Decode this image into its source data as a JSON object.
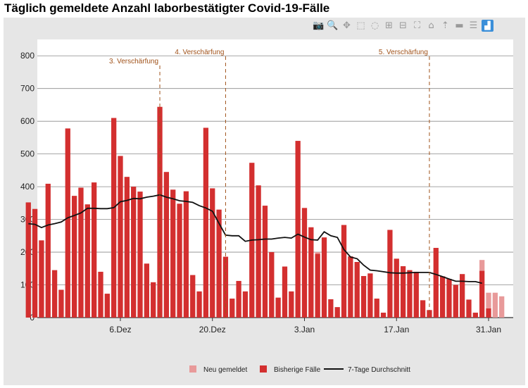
{
  "title": "Täglich gemeldete Anzahl laborbestätigter Covid-19-Fälle",
  "toolbar": [
    {
      "name": "camera-icon",
      "glyph": "📷"
    },
    {
      "name": "zoom-icon",
      "glyph": "🔍"
    },
    {
      "name": "pan-icon",
      "glyph": "✥"
    },
    {
      "name": "box-select-icon",
      "glyph": "⬚"
    },
    {
      "name": "lasso-select-icon",
      "glyph": "◌"
    },
    {
      "name": "zoom-in-icon",
      "glyph": "⊞"
    },
    {
      "name": "zoom-out-icon",
      "glyph": "⊟"
    },
    {
      "name": "autoscale-icon",
      "glyph": "⛶"
    },
    {
      "name": "home-icon",
      "glyph": "⌂"
    },
    {
      "name": "spike-lines-icon",
      "glyph": "⇡"
    },
    {
      "name": "hover-closest-icon",
      "glyph": "▬"
    },
    {
      "name": "hover-compare-icon",
      "glyph": "☰"
    },
    {
      "name": "plotly-logo-icon",
      "glyph": "▟"
    }
  ],
  "colors": {
    "bars": "#d32f2f",
    "new_bars": "#e89a9a",
    "line": "#111111",
    "annotation": "#a0521a",
    "grid": "#8a8a8a"
  },
  "chart_data": {
    "type": "bar",
    "title": "Täglich gemeldete Anzahl laborbestätigter Covid-19-Fälle",
    "ylim": [
      0,
      850
    ],
    "yticks": [
      0,
      100,
      200,
      300,
      400,
      500,
      600,
      700,
      800
    ],
    "x_start": "2020-11-22",
    "xticks": [
      {
        "date": "2020-12-06",
        "label": "6.Dez"
      },
      {
        "date": "2020-12-20",
        "label": "20.Dez"
      },
      {
        "date": "2021-01-03",
        "label": "3.Jan"
      },
      {
        "date": "2021-01-17",
        "label": "17.Jan"
      },
      {
        "date": "2021-01-31",
        "label": "31.Jan"
      }
    ],
    "series": [
      {
        "name": "Neu gemeldet",
        "type": "bar",
        "color": "#e89a9a"
      },
      {
        "name": "Bisherige Fälle",
        "type": "bar",
        "color": "#d32f2f"
      },
      {
        "name": "7-Tage Durchschnitt",
        "type": "line",
        "color": "#111111"
      }
    ],
    "bisherige": [
      352,
      332,
      236,
      409,
      145,
      85,
      578,
      372,
      397,
      346,
      413,
      140,
      73,
      610,
      494,
      430,
      400,
      385,
      165,
      108,
      644,
      445,
      391,
      348,
      386,
      130,
      80,
      580,
      395,
      330,
      186,
      58,
      112,
      80,
      473,
      404,
      342,
      200,
      61,
      156,
      80,
      540,
      335,
      276,
      195,
      245,
      56,
      32,
      283,
      187,
      170,
      127,
      135,
      58,
      15,
      268,
      180,
      157,
      145,
      140,
      53,
      23,
      213,
      126,
      118,
      100,
      133,
      55,
      15,
      143,
      28,
      0,
      0
    ],
    "neu": [
      0,
      0,
      0,
      0,
      0,
      0,
      0,
      0,
      0,
      0,
      0,
      0,
      0,
      0,
      0,
      0,
      0,
      0,
      0,
      0,
      0,
      0,
      0,
      0,
      0,
      0,
      0,
      0,
      0,
      0,
      0,
      0,
      0,
      0,
      0,
      0,
      0,
      0,
      0,
      0,
      0,
      0,
      0,
      0,
      5,
      0,
      0,
      0,
      0,
      0,
      0,
      0,
      0,
      0,
      0,
      0,
      0,
      0,
      0,
      0,
      0,
      0,
      0,
      0,
      0,
      0,
      0,
      0,
      0,
      33,
      48,
      76,
      65
    ],
    "avg7": [
      287,
      285,
      275,
      283,
      287,
      292,
      305,
      312,
      320,
      334,
      334,
      333,
      333,
      336,
      354,
      358,
      364,
      363,
      368,
      371,
      375,
      368,
      363,
      357,
      355,
      352,
      342,
      335,
      325,
      288,
      252,
      250,
      250,
      233,
      237,
      238,
      240,
      240,
      243,
      245,
      243,
      255,
      246,
      238,
      237,
      262,
      250,
      245,
      208,
      185,
      180,
      160,
      145,
      143,
      140,
      137,
      136,
      136,
      137,
      138,
      138,
      138,
      132,
      125,
      118,
      111,
      111,
      110,
      110,
      105
    ],
    "annotations": [
      {
        "label": "3. Verschärfung",
        "date": "2020-12-12"
      },
      {
        "label": "4. Verschärfung",
        "date": "2020-12-22"
      },
      {
        "label": "5. Verschärfung",
        "date": "2021-01-22"
      }
    ],
    "legend_placement": "bottom-center",
    "grid": true
  }
}
